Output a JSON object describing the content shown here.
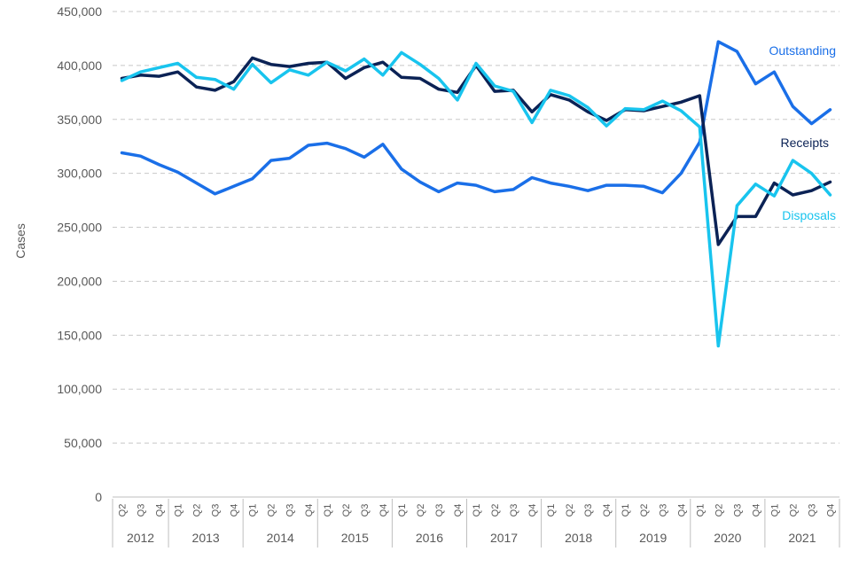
{
  "chart_data": {
    "type": "line",
    "title": "",
    "ylabel": "Cases",
    "xlabel": "",
    "ylim": [
      0,
      450000
    ],
    "y_ticks": [
      0,
      50000,
      100000,
      150000,
      200000,
      250000,
      300000,
      350000,
      400000,
      450000
    ],
    "y_tick_labels": [
      "0",
      "50,000",
      "100,000",
      "150,000",
      "200,000",
      "250,000",
      "300,000",
      "350,000",
      "400,000",
      "450,000"
    ],
    "grid": true,
    "legend": "inline-right",
    "categories": [
      "Q2",
      "Q3",
      "Q4",
      "Q1",
      "Q2",
      "Q3",
      "Q4",
      "Q1",
      "Q2",
      "Q3",
      "Q4",
      "Q1",
      "Q2",
      "Q3",
      "Q4",
      "Q1",
      "Q2",
      "Q3",
      "Q4",
      "Q1",
      "Q2",
      "Q3",
      "Q4",
      "Q1",
      "Q2",
      "Q3",
      "Q4",
      "Q1",
      "Q2",
      "Q3",
      "Q4",
      "Q1",
      "Q2",
      "Q3",
      "Q4",
      "Q1",
      "Q2",
      "Q3",
      "Q4"
    ],
    "year_groups": [
      {
        "label": "2012",
        "count": 3
      },
      {
        "label": "2013",
        "count": 4
      },
      {
        "label": "2014",
        "count": 4
      },
      {
        "label": "2015",
        "count": 4
      },
      {
        "label": "2016",
        "count": 4
      },
      {
        "label": "2017",
        "count": 4
      },
      {
        "label": "2018",
        "count": 4
      },
      {
        "label": "2019",
        "count": 4
      },
      {
        "label": "2020",
        "count": 4
      },
      {
        "label": "2021",
        "count": 4
      }
    ],
    "series": [
      {
        "name": "Outstanding",
        "color": "#1a6fe8",
        "values": [
          319000,
          316000,
          308000,
          301000,
          291000,
          281000,
          288000,
          295000,
          312000,
          314000,
          326000,
          328000,
          323000,
          315000,
          327000,
          304000,
          292000,
          283000,
          291000,
          289000,
          283000,
          285000,
          296000,
          291000,
          288000,
          284000,
          289000,
          289000,
          288000,
          282000,
          300000,
          329000,
          422000,
          413000,
          383000,
          394000,
          362000,
          346000,
          359000
        ]
      },
      {
        "name": "Receipts",
        "color": "#0b2255",
        "values": [
          388000,
          391000,
          390000,
          394000,
          380000,
          377000,
          385000,
          407000,
          401000,
          399000,
          402000,
          403000,
          388000,
          398000,
          403000,
          389000,
          388000,
          378000,
          375000,
          400000,
          376000,
          377000,
          357000,
          373000,
          368000,
          357000,
          349000,
          359000,
          358000,
          362000,
          366000,
          372000,
          234000,
          260000,
          260000,
          291000,
          280000,
          284000,
          292000
        ]
      },
      {
        "name": "Disposals",
        "color": "#18c4ee",
        "values": [
          386000,
          394000,
          398000,
          402000,
          389000,
          387000,
          378000,
          401000,
          384000,
          396000,
          391000,
          403000,
          395000,
          406000,
          391000,
          412000,
          401000,
          388000,
          368000,
          402000,
          381000,
          376000,
          347000,
          377000,
          372000,
          361000,
          344000,
          360000,
          359000,
          367000,
          358000,
          343000,
          140000,
          270000,
          290000,
          279000,
          312000,
          300000,
          280000
        ]
      }
    ]
  }
}
